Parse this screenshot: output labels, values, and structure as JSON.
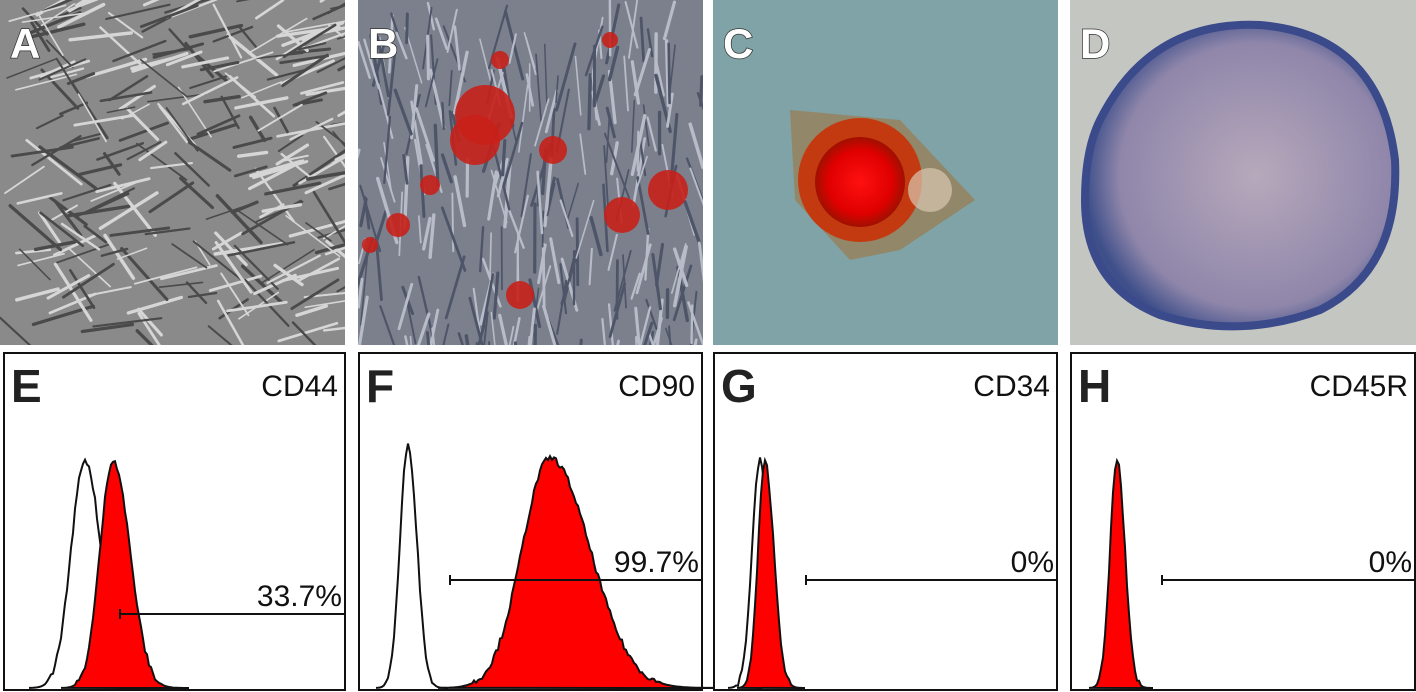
{
  "images": [
    {
      "label": "A"
    },
    {
      "label": "B"
    },
    {
      "label": "C"
    },
    {
      "label": "D"
    }
  ],
  "histograms": [
    {
      "label": "E",
      "marker": "CD44",
      "percent": "33.7%"
    },
    {
      "label": "F",
      "marker": "CD90",
      "percent": "99.7%"
    },
    {
      "label": "G",
      "marker": "CD34",
      "percent": "0%"
    },
    {
      "label": "H",
      "marker": "CD45R",
      "percent": "0%"
    }
  ]
}
